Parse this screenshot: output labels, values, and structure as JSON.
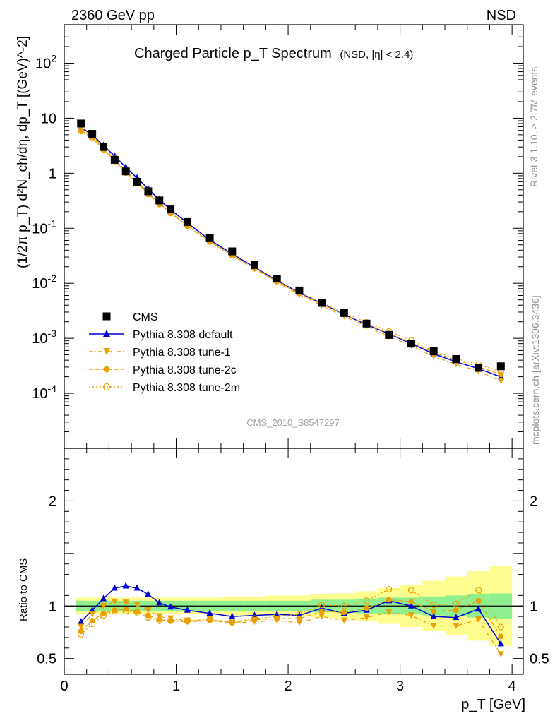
{
  "header": {
    "left": "2360 GeV pp",
    "right": "NSD"
  },
  "side_text": {
    "rivet": "Rivet 3.1.10, ≥ 2.7M events",
    "mcplots": "mcplots.cern.ch [arXiv:1306.3436]"
  },
  "watermark": "CMS_2010_S8547297",
  "colors": {
    "cms": "#000000",
    "default": "#0000d0",
    "tune1": "#e8a000",
    "tune2c": "#e8a000",
    "tune2m": "#e8a000",
    "band_inner": "#90f090",
    "band_outer": "#fdfd90"
  },
  "chart_data": [
    {
      "type": "scatter",
      "title": "Charged Particle p_T Spectrum",
      "title_suffix": "(NSD, |η| < 2.4)",
      "ylabel": "(1/2π p_T) d²N_ch/dη, dp_T [(GeV)^-2]",
      "yscale": "log",
      "ylim": [
        1e-05,
        500
      ],
      "xlim": [
        0,
        4
      ],
      "ytick_labels": [
        "10^-4",
        "10^-3",
        "10^-2",
        "10^-1",
        "1",
        "10",
        "10^2"
      ],
      "legend_position": "bottom-left",
      "x": [
        0.15,
        0.25,
        0.35,
        0.45,
        0.55,
        0.65,
        0.75,
        0.85,
        0.95,
        1.1,
        1.3,
        1.5,
        1.7,
        1.9,
        2.1,
        2.3,
        2.5,
        2.7,
        2.9,
        3.1,
        3.3,
        3.5,
        3.7,
        3.9
      ],
      "series": [
        {
          "name": "CMS",
          "marker": "square",
          "values": [
            8.0,
            5.2,
            3.0,
            1.75,
            1.08,
            0.7,
            0.47,
            0.32,
            0.22,
            0.13,
            0.066,
            0.038,
            0.0215,
            0.0122,
            0.0074,
            0.0044,
            0.0029,
            0.00185,
            0.00115,
            0.0008,
            0.00058,
            0.00042,
            0.00029,
            0.00031
          ]
        },
        {
          "name": "Pythia 8.308 default",
          "marker": "triangle-up",
          "line": "solid",
          "ratio": [
            0.85,
            0.96,
            1.07,
            1.17,
            1.19,
            1.17,
            1.11,
            1.03,
            0.99,
            0.96,
            0.93,
            0.9,
            0.91,
            0.92,
            0.91,
            0.98,
            0.93,
            0.96,
            1.05,
            1.0,
            0.9,
            0.89,
            0.97,
            0.64
          ]
        },
        {
          "name": "Pythia 8.308 tune-1",
          "marker": "triangle-down",
          "line": "dashdot",
          "ratio": [
            0.8,
            0.92,
            1.0,
            1.04,
            1.03,
            1.01,
            0.96,
            0.9,
            0.88,
            0.86,
            0.87,
            0.84,
            0.85,
            0.86,
            0.84,
            0.9,
            0.86,
            0.89,
            0.94,
            0.91,
            0.81,
            0.81,
            0.87,
            0.54
          ]
        },
        {
          "name": "Pythia 8.308 tune-2c",
          "marker": "circle",
          "line": "dashed",
          "ratio": [
            0.76,
            0.86,
            0.93,
            0.96,
            0.97,
            0.95,
            0.91,
            0.87,
            0.86,
            0.85,
            0.86,
            0.84,
            0.87,
            0.88,
            0.88,
            0.95,
            0.94,
            0.98,
            1.06,
            1.04,
            0.95,
            0.96,
            1.05,
            0.71
          ]
        },
        {
          "name": "Pythia 8.308 tune-2m",
          "marker": "open-circle",
          "line": "dotted",
          "ratio": [
            0.73,
            0.83,
            0.91,
            0.95,
            0.95,
            0.94,
            0.89,
            0.86,
            0.86,
            0.86,
            0.87,
            0.85,
            0.88,
            0.9,
            0.92,
            1.01,
            1.0,
            1.05,
            1.16,
            1.15,
            1.01,
            1.02,
            1.15,
            0.8
          ]
        }
      ]
    },
    {
      "type": "line",
      "ylabel": "Ratio to CMS",
      "xlabel": "p_T [GeV]",
      "ylim": [
        0.35,
        2.5
      ],
      "xlim": [
        0,
        4.1
      ],
      "ytick_labels": [
        "0.5",
        "1",
        "2"
      ],
      "xtick_labels": [
        "0",
        "1",
        "2",
        "3",
        "4"
      ],
      "band_edges": [
        0.1,
        0.2,
        0.3,
        0.4,
        0.5,
        0.6,
        0.7,
        0.8,
        0.9,
        1.0,
        1.2,
        1.4,
        1.6,
        1.8,
        2.0,
        2.2,
        2.4,
        2.6,
        2.8,
        3.0,
        3.2,
        3.4,
        3.6,
        3.8,
        4.0
      ],
      "band_inner": [
        0.05,
        0.05,
        0.05,
        0.05,
        0.05,
        0.05,
        0.05,
        0.05,
        0.05,
        0.05,
        0.05,
        0.05,
        0.05,
        0.05,
        0.05,
        0.06,
        0.06,
        0.07,
        0.08,
        0.08,
        0.09,
        0.1,
        0.11,
        0.12
      ],
      "band_outer": [
        0.08,
        0.08,
        0.08,
        0.08,
        0.08,
        0.08,
        0.08,
        0.08,
        0.08,
        0.08,
        0.08,
        0.09,
        0.09,
        0.1,
        0.1,
        0.11,
        0.12,
        0.14,
        0.17,
        0.2,
        0.24,
        0.28,
        0.33,
        0.38
      ]
    }
  ]
}
